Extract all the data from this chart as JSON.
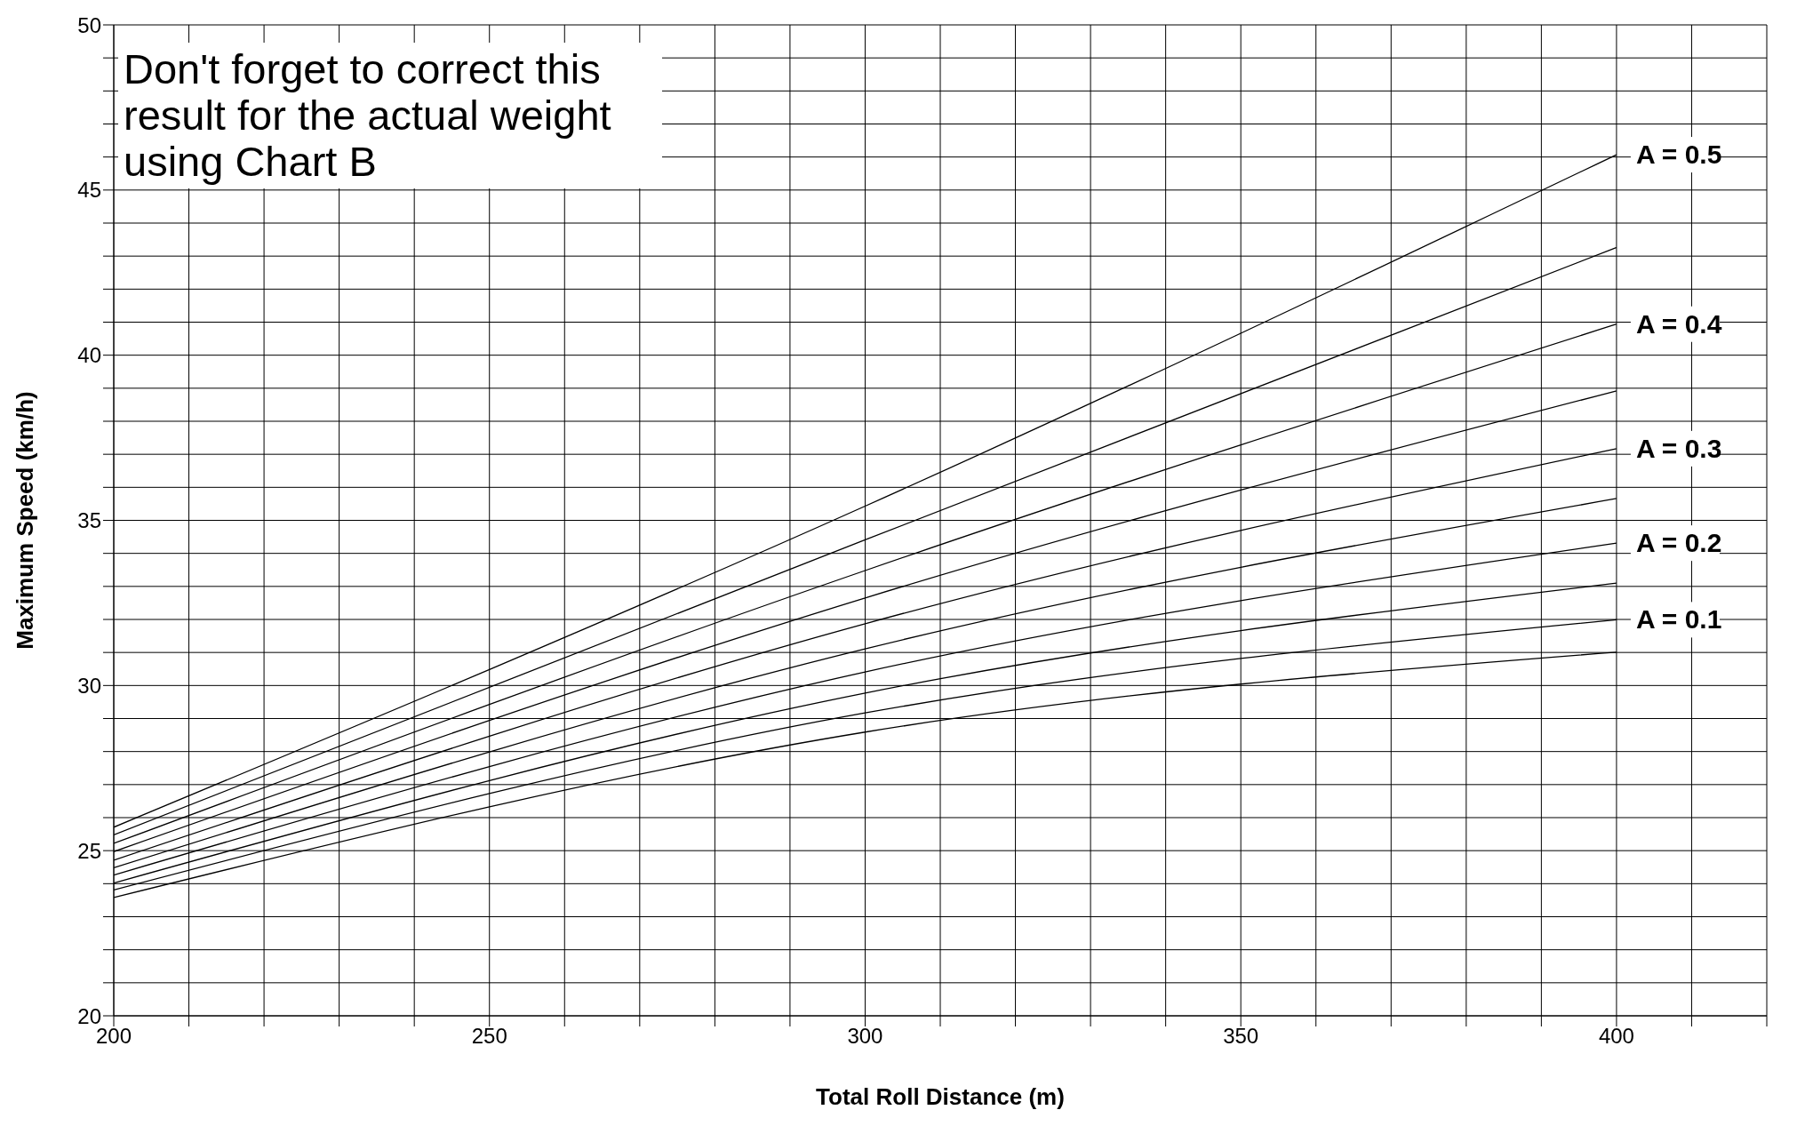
{
  "chart_data": {
    "type": "line",
    "xlabel": "Total Roll Distance (m)",
    "ylabel": "Maximum Speed (km/h)",
    "x": [
      200,
      300,
      400
    ],
    "series": [
      {
        "name": "A = 0.5",
        "color": "#000000",
        "values": [
          25.71,
          35.43,
          46.07
        ]
      },
      {
        "color": "#000000",
        "values": [
          25.48,
          34.41,
          43.26
        ]
      },
      {
        "name": "A = 0.4",
        "color": "#000000",
        "values": [
          25.22,
          33.48,
          40.94
        ]
      },
      {
        "color": "#000000",
        "values": [
          24.97,
          32.65,
          38.92
        ]
      },
      {
        "name": "A = 0.3",
        "color": "#000000",
        "values": [
          24.71,
          31.87,
          37.17
        ]
      },
      {
        "color": "#000000",
        "values": [
          24.48,
          31.11,
          35.66
        ]
      },
      {
        "name": "A = 0.2",
        "color": "#000000",
        "values": [
          24.26,
          30.41,
          34.31
        ]
      },
      {
        "color": "#000000",
        "values": [
          24.02,
          29.77,
          33.1
        ]
      },
      {
        "name": "A = 0.1",
        "color": "#000000",
        "values": [
          23.81,
          29.17,
          31.99
        ]
      },
      {
        "color": "#000000",
        "values": [
          23.58,
          28.59,
          31.01
        ]
      }
    ],
    "xlim": [
      200,
      420
    ],
    "xticks": [
      200,
      {
        "value": 210,
        "label": null
      },
      {
        "value": 220,
        "label": null
      },
      {
        "value": 230,
        "label": null
      },
      {
        "value": 240,
        "label": null
      },
      250,
      {
        "value": 260,
        "label": null
      },
      {
        "value": 270,
        "label": null
      },
      {
        "value": 280,
        "label": null
      },
      {
        "value": 290,
        "label": null
      },
      300,
      {
        "value": 310,
        "label": null
      },
      {
        "value": 320,
        "label": null
      },
      {
        "value": 330,
        "label": null
      },
      {
        "value": 340,
        "label": null
      },
      350,
      {
        "value": 360,
        "label": null
      },
      {
        "value": 370,
        "label": null
      },
      {
        "value": 380,
        "label": null
      },
      {
        "value": 390,
        "label": null
      },
      400,
      {
        "value": 410,
        "label": null
      },
      {
        "value": 420,
        "label": null
      }
    ],
    "ylim": [
      20,
      50
    ],
    "yticks": [
      20,
      {
        "value": 21,
        "label": null
      },
      {
        "value": 22,
        "label": null
      },
      {
        "value": 23,
        "label": null
      },
      {
        "value": 24,
        "label": null
      },
      25,
      {
        "value": 26,
        "label": null
      },
      {
        "value": 27,
        "label": null
      },
      {
        "value": 28,
        "label": null
      },
      {
        "value": 29,
        "label": null
      },
      30,
      {
        "value": 31,
        "label": null
      },
      {
        "value": 32,
        "label": null
      },
      {
        "value": 33,
        "label": null
      },
      {
        "value": 34,
        "label": null
      },
      35,
      {
        "value": 36,
        "label": null
      },
      {
        "value": 37,
        "label": null
      },
      {
        "value": 38,
        "label": null
      },
      {
        "value": 39,
        "label": null
      },
      40,
      {
        "value": 41,
        "label": null
      },
      {
        "value": 42,
        "label": null
      },
      {
        "value": 43,
        "label": null
      },
      {
        "value": 44,
        "label": null
      },
      45,
      {
        "value": 46,
        "label": null
      },
      {
        "value": 47,
        "label": null
      },
      {
        "value": 48,
        "label": null
      },
      {
        "value": 49,
        "label": null
      },
      50
    ],
    "grid": true,
    "marker": "none",
    "line_style": "solid",
    "legend": false,
    "annotations": [
      "Don't forget to correct this result for the actual weight using Chart B"
    ]
  }
}
